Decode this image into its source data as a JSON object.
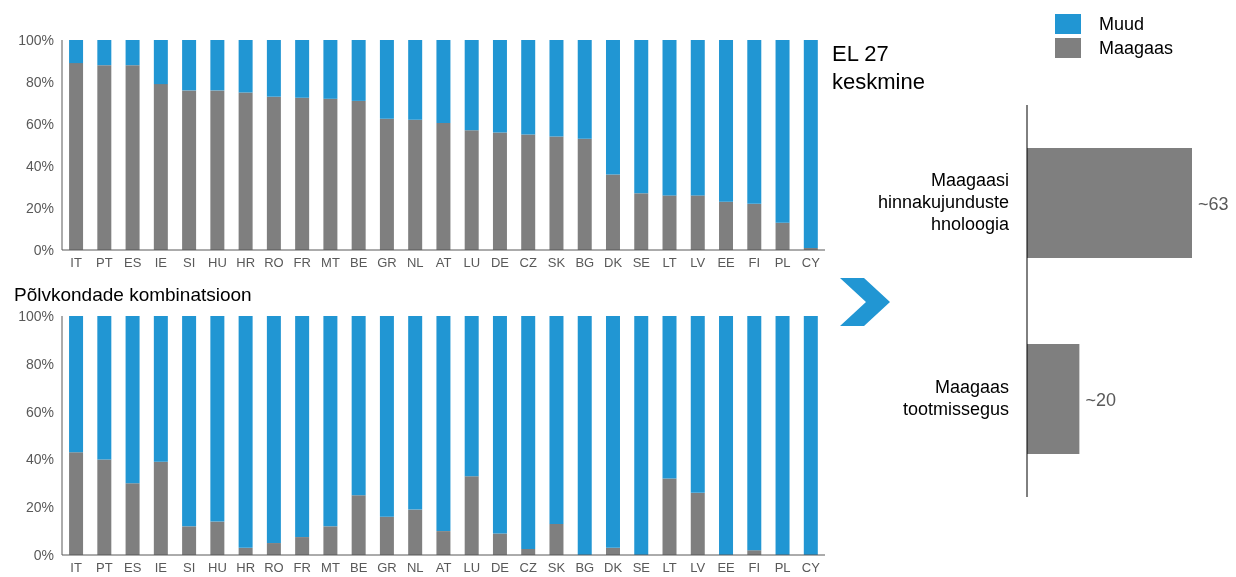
{
  "chart_data": [
    {
      "type": "bar",
      "stacked": true,
      "categories": [
        "IT",
        "PT",
        "ES",
        "IE",
        "SI",
        "HU",
        "HR",
        "RO",
        "FR",
        "MT",
        "BE",
        "GR",
        "NL",
        "AT",
        "LU",
        "DE",
        "CZ",
        "SK",
        "BG",
        "DK",
        "SE",
        "LT",
        "LV",
        "EE",
        "FI",
        "PL",
        "CY"
      ],
      "series": [
        {
          "name": "Maagaas",
          "color": "#7f7f7f",
          "values": [
            89,
            88,
            88,
            79,
            76,
            76,
            75,
            73,
            72.5,
            72,
            71,
            62.5,
            62,
            60.5,
            57,
            56,
            55,
            54,
            53,
            36,
            27,
            26,
            26,
            23,
            22,
            13,
            1
          ]
        },
        {
          "name": "Muud",
          "color": "#2196d3",
          "values": [
            11,
            12,
            12,
            21,
            24,
            24,
            25,
            27,
            27.5,
            28,
            29,
            37.5,
            38,
            39.5,
            43,
            44,
            45,
            46,
            47,
            64,
            73,
            74,
            74,
            77,
            78,
            87,
            99
          ]
        }
      ],
      "ylim": [
        0,
        100
      ],
      "yticks": [
        {
          "value": 0,
          "label": "0%"
        },
        {
          "value": 20,
          "label": "20%"
        },
        {
          "value": 40,
          "label": "40%"
        },
        {
          "value": 60,
          "label": "60%"
        },
        {
          "value": 80,
          "label": "80%"
        },
        {
          "value": 100,
          "label": "100%"
        }
      ],
      "legend": "top right",
      "annotations": [
        "EL 27 keskmine"
      ]
    },
    {
      "type": "bar",
      "stacked": true,
      "title": "Põlvkondade kombinatsioon",
      "categories": [
        "IT",
        "PT",
        "ES",
        "IE",
        "SI",
        "HU",
        "HR",
        "RO",
        "FR",
        "MT",
        "BE",
        "GR",
        "NL",
        "AT",
        "LU",
        "DE",
        "CZ",
        "SK",
        "BG",
        "DK",
        "SE",
        "LT",
        "LV",
        "EE",
        "FI",
        "PL",
        "CY"
      ],
      "series": [
        {
          "color": "#7f7f7f",
          "values": [
            43,
            40,
            30,
            39,
            12,
            14,
            3,
            5,
            7.5,
            12,
            25,
            16,
            19,
            10,
            33,
            9,
            2.5,
            13,
            0,
            3,
            0,
            32,
            26,
            0,
            2,
            0,
            0
          ]
        },
        {
          "color": "#2196d3",
          "values": [
            57,
            60,
            70,
            61,
            88,
            86,
            97,
            95,
            92.5,
            88,
            75,
            84,
            81,
            90,
            67,
            91,
            97.5,
            87,
            100,
            97,
            100,
            68,
            74,
            100,
            98,
            100,
            100
          ]
        }
      ],
      "ylim": [
        0,
        100
      ],
      "yticks": [
        {
          "value": 0,
          "label": "0%"
        },
        {
          "value": 20,
          "label": "20%"
        },
        {
          "value": 40,
          "label": "40%"
        },
        {
          "value": 60,
          "label": "60%"
        },
        {
          "value": 80,
          "label": "80%"
        },
        {
          "value": 100,
          "label": "100%"
        }
      ]
    },
    {
      "type": "bar",
      "orientation": "horizontal",
      "categories": [
        "Maagaasi hinnakujundustehnoloogia",
        "Maagaas tootmissegus"
      ],
      "values": [
        63,
        20
      ],
      "color": "#7f7f7f",
      "value_labels": [
        "~63",
        "~20"
      ],
      "tick_labels": "y"
    }
  ]
}
